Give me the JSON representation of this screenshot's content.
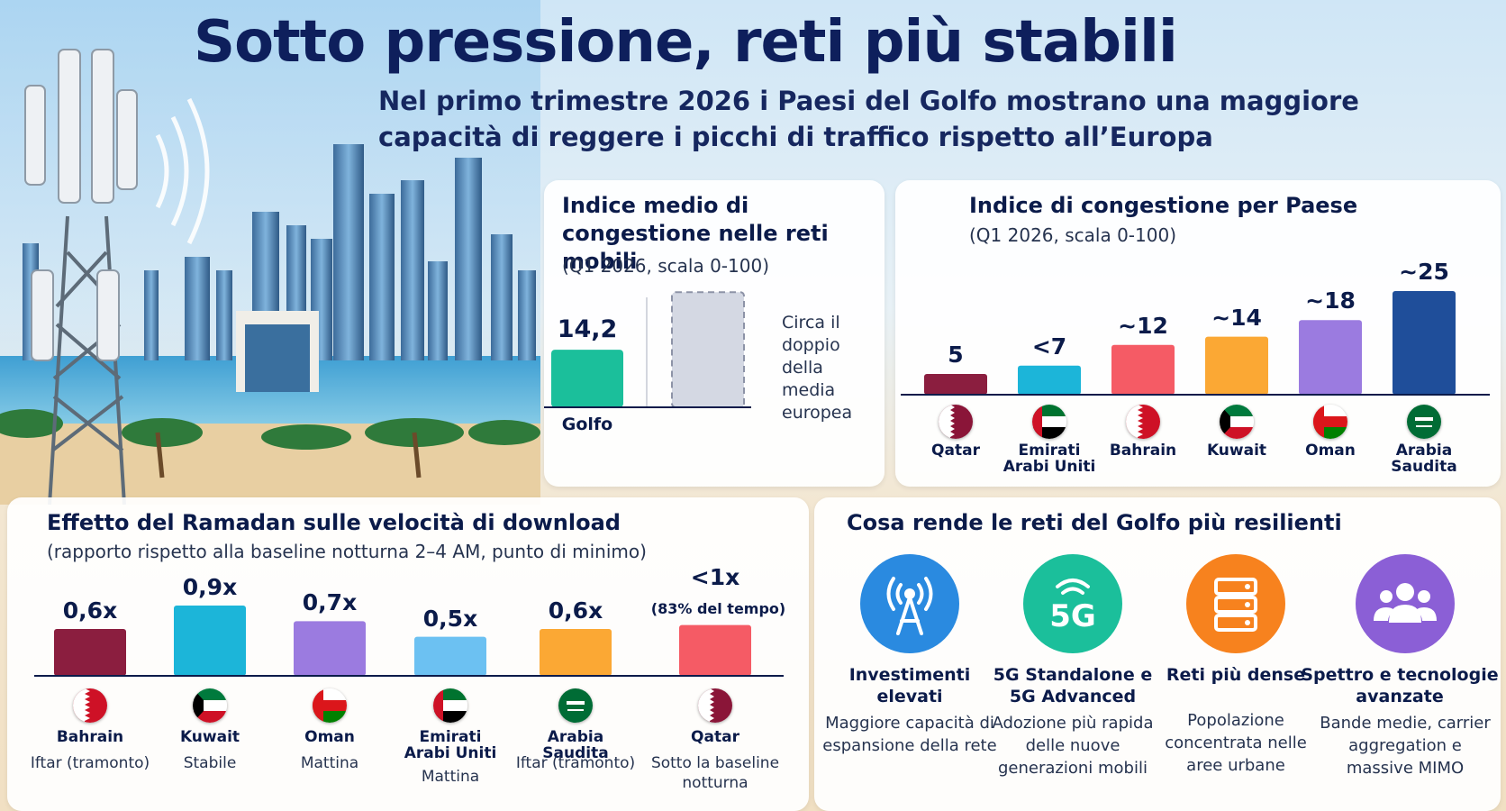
{
  "header": {
    "title": "Sotto pressione, reti più stabili",
    "subtitle": "Nel primo trimestre 2026 i Paesi del Golfo mostrano una maggiore capacità di reggere i picchi di traffico rispetto all’Europa"
  },
  "colors": {
    "navy": "#0e1f5c",
    "teal": "#1bbf9b",
    "maroon": "#8b1e3f",
    "cyan": "#1cb5d9",
    "coral": "#f55b65",
    "orange": "#fba834",
    "purple": "#9b7be0",
    "blue": "#1f4e9a",
    "light_blue": "#6cc1f2"
  },
  "chart_data": [
    {
      "type": "bar",
      "title": "Indice medio di congestione nelle reti mobili",
      "subtitle": "(Q1 2026, scala 0-100)",
      "categories": [
        "Golfo",
        ""
      ],
      "values": [
        14.2,
        28.4
      ],
      "value_labels": [
        "14,2",
        ""
      ],
      "annotation": "Circa il doppio della media europea",
      "ylim": [
        0,
        30
      ]
    },
    {
      "type": "bar",
      "title": "Indice di congestione per Paese",
      "subtitle": "(Q1 2026, scala 0-100)",
      "categories": [
        "Qatar",
        "Emirati Arabi Uniti",
        "Bahrain",
        "Kuwait",
        "Oman",
        "Arabia Saudita"
      ],
      "values": [
        5,
        7,
        12,
        14,
        18,
        25
      ],
      "value_labels": [
        "5",
        "<7",
        "~12",
        "~14",
        "~18",
        "~25"
      ],
      "colors": [
        "#8b1e3f",
        "#1cb5d9",
        "#f55b65",
        "#fba834",
        "#9b7be0",
        "#1f4e9a"
      ],
      "ylim": [
        0,
        25
      ]
    },
    {
      "type": "bar",
      "title": "Effetto del Ramadan sulle velocità di download",
      "subtitle": "(rapporto rispetto alla baseline notturna 2–4 AM, punto di minimo)",
      "categories": [
        "Bahrain",
        "Kuwait",
        "Oman",
        "Emirati Arabi Uniti",
        "Arabia Saudita",
        "Qatar"
      ],
      "values": [
        0.6,
        0.9,
        0.7,
        0.5,
        0.6,
        0.65
      ],
      "value_labels": [
        "0,6x",
        "0,9x",
        "0,7x",
        "0,5x",
        "0,6x",
        "<1x"
      ],
      "extra_label": "(83% del tempo)",
      "notes": [
        "Iftar (tramonto)",
        "Stabile",
        "Mattina",
        "Mattina",
        "Iftar (tramonto)",
        "Sotto la baseline notturna"
      ],
      "colors": [
        "#8b1e3f",
        "#1cb5d9",
        "#9b7be0",
        "#6cc1f2",
        "#fba834",
        "#f55b65"
      ],
      "ylim": [
        0,
        0.9
      ]
    }
  ],
  "resilience": {
    "title": "Cosa rende le reti del Golfo più resilienti",
    "items": [
      {
        "title": "Investimenti elevati",
        "desc": "Maggiore capacità di espansione della rete",
        "icon": "antenna-icon",
        "color": "#2a8ae0"
      },
      {
        "title": "5G Standalone e 5G Advanced",
        "desc": "Adozione più rapida delle nuove generazioni mobili",
        "icon": "5g-icon",
        "color": "#1bbf9b",
        "glyph": "5G"
      },
      {
        "title": "Reti più dense",
        "desc": "Popolazione concentrata nelle aree urbane",
        "icon": "server-icon",
        "color": "#f7821e"
      },
      {
        "title": "Spettro e tecnologie avanzate",
        "desc": "Bande medie, carrier aggregation e massive MIMO",
        "icon": "users-icon",
        "color": "#8b5fd6"
      }
    ]
  }
}
